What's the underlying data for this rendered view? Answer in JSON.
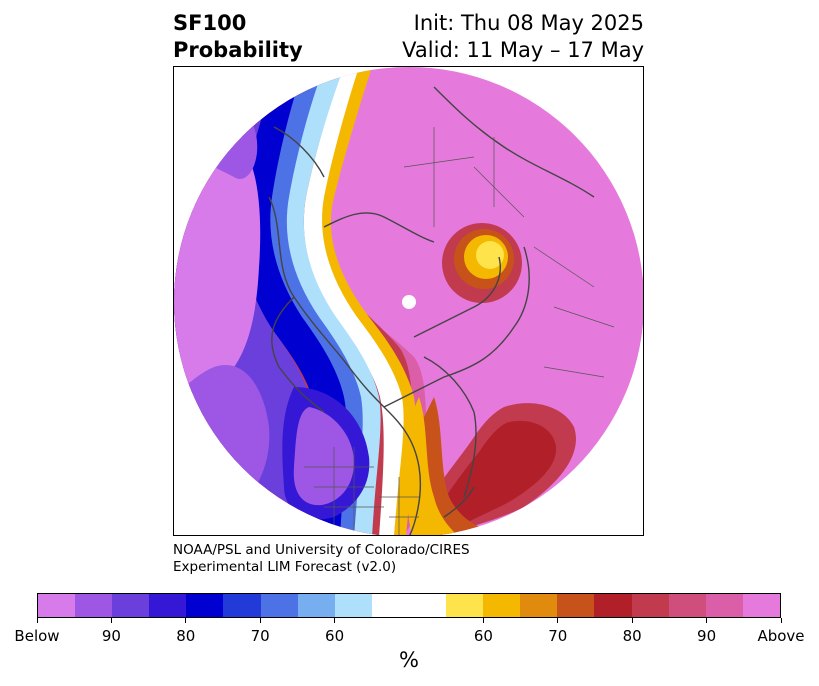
{
  "title": {
    "variable": "SF100",
    "kind": "Probability",
    "init": "Init: Thu 08 May 2025",
    "valid": "Valid: 11 May – 17 May"
  },
  "credit": {
    "line1": "NOAA/PSL and University of Colorado/CIRES",
    "line2": "Experimental LIM Forecast (v2.0)"
  },
  "colorbar": {
    "unit": "%",
    "colors": [
      "#d87bea",
      "#9e57e4",
      "#6a3fdc",
      "#3517d6",
      "#0000d0",
      "#223ad8",
      "#4c72e6",
      "#76aef0",
      "#aee0fc",
      "#ffffff",
      "#ffffff",
      "#fee34a",
      "#f5b800",
      "#e08a0e",
      "#c7531a",
      "#b12028",
      "#c13a4d",
      "#cf4e7c",
      "#db5fa8",
      "#e57adc"
    ],
    "labels": [
      "Below",
      "90",
      "80",
      "70",
      "60",
      "60",
      "70",
      "80",
      "90",
      "Above"
    ]
  },
  "map": {
    "projection": "north-polar-stereographic",
    "above_color": "#e57adc",
    "below_color": "#9e57e4"
  }
}
